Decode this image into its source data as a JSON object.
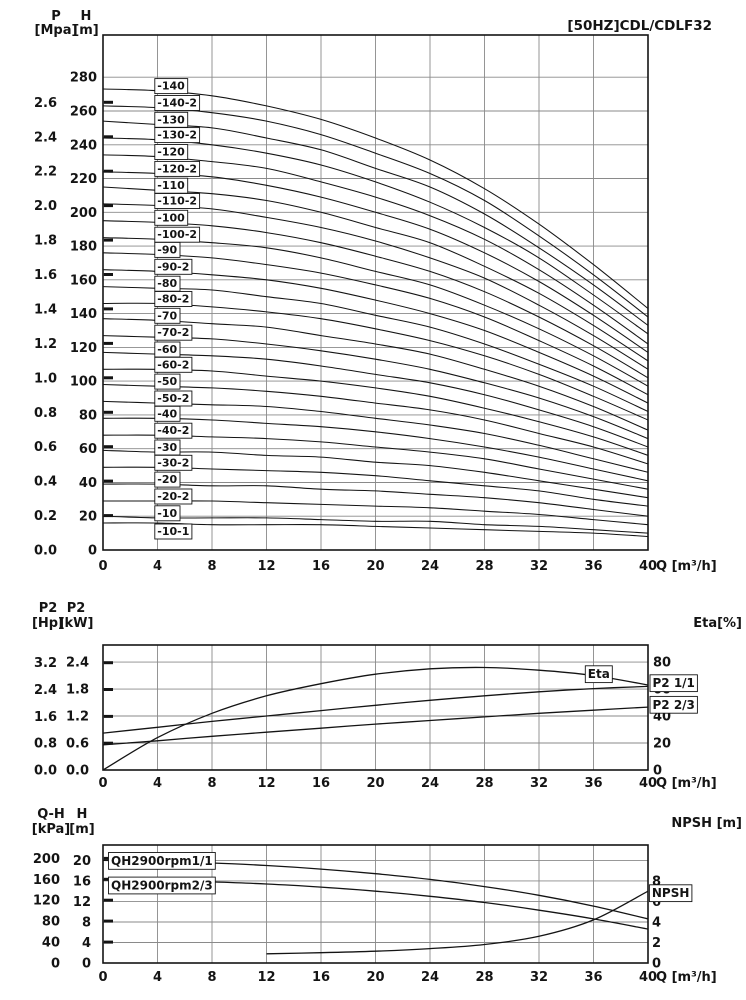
{
  "sheet_title": "[50HZ]CDL/CDLF32",
  "chart_data": [
    {
      "id": "main",
      "type": "line",
      "title": "[50HZ]CDL/CDLF32",
      "x_axis_label": "Q [m³/h]",
      "xlim": [
        0,
        40
      ],
      "x_ticks": [
        "0",
        "4",
        "8",
        "12",
        "16",
        "20",
        "24",
        "28",
        "32",
        "36",
        "40"
      ],
      "x": [
        0,
        4,
        8,
        12,
        16,
        20,
        24,
        28,
        32,
        36,
        40
      ],
      "y_internal": {
        "unit": "m",
        "max": 305,
        "grid_step": 20,
        "grid_max": 280
      },
      "left_axes": [
        {
          "name": "P",
          "unit": "[Mpa]",
          "ticks": [
            "0.0",
            "0.2",
            "0.4",
            "0.6",
            "0.8",
            "1.0",
            "1.2",
            "1.4",
            "1.6",
            "1.8",
            "2.0",
            "2.2",
            "2.4",
            "2.6"
          ],
          "unit_to_internal": 101.97,
          "bold_edge_ticks": true
        },
        {
          "name": "H",
          "unit": "[m]",
          "ticks": [
            "0",
            "20",
            "40",
            "60",
            "80",
            "100",
            "120",
            "140",
            "160",
            "180",
            "200",
            "220",
            "240",
            "260",
            "280"
          ],
          "unit_to_internal": 1
        }
      ],
      "series": [
        {
          "name": "-140",
          "values": [
            273,
            272,
            269,
            263,
            255,
            244,
            231,
            214,
            193,
            169,
            143
          ],
          "label": {
            "x": 3.8
          }
        },
        {
          "name": "-140-2",
          "values": [
            263,
            262,
            259,
            254,
            246,
            235,
            223,
            207,
            186,
            163,
            138
          ],
          "label": {
            "x": 3.8
          }
        },
        {
          "name": "-130",
          "values": [
            254,
            252,
            250,
            244,
            237,
            226,
            215,
            199,
            179,
            157,
            133
          ],
          "label": {
            "x": 3.8
          }
        },
        {
          "name": "-130-2",
          "values": [
            244,
            243,
            240,
            235,
            228,
            218,
            206,
            191,
            173,
            151,
            128
          ],
          "label": {
            "x": 3.8
          }
        },
        {
          "name": "-120",
          "values": [
            234,
            233,
            230,
            226,
            218,
            209,
            198,
            184,
            166,
            145,
            122
          ],
          "label": {
            "x": 3.8
          }
        },
        {
          "name": "-120-2",
          "values": [
            224,
            223,
            221,
            216,
            209,
            200,
            190,
            176,
            159,
            139,
            117
          ],
          "label": {
            "x": 3.8
          }
        },
        {
          "name": "-110",
          "values": [
            215,
            213,
            211,
            207,
            200,
            191,
            182,
            168,
            152,
            133,
            112
          ],
          "label": {
            "x": 3.8
          }
        },
        {
          "name": "-110-2",
          "values": [
            205,
            204,
            202,
            197,
            191,
            183,
            173,
            161,
            145,
            127,
            107
          ],
          "label": {
            "x": 3.8
          }
        },
        {
          "name": "-100",
          "values": [
            195,
            194,
            192,
            188,
            182,
            174,
            165,
            153,
            138,
            121,
            102
          ],
          "label": {
            "x": 3.8
          }
        },
        {
          "name": "-100-2",
          "values": [
            185,
            184,
            182,
            179,
            173,
            165,
            157,
            145,
            131,
            115,
            97
          ],
          "label": {
            "x": 3.8
          }
        },
        {
          "name": "-90",
          "values": [
            176,
            175,
            173,
            169,
            164,
            157,
            149,
            138,
            124,
            109,
            92
          ],
          "label": {
            "x": 3.8
          }
        },
        {
          "name": "-90-2",
          "values": [
            166,
            165,
            163,
            160,
            155,
            148,
            140,
            130,
            117,
            103,
            87
          ],
          "label": {
            "x": 3.8
          }
        },
        {
          "name": "-80",
          "values": [
            156,
            155,
            154,
            150,
            146,
            139,
            132,
            122,
            110,
            97,
            82
          ],
          "label": {
            "x": 3.8
          }
        },
        {
          "name": "-80-2",
          "values": [
            146,
            146,
            144,
            141,
            137,
            131,
            124,
            115,
            104,
            91,
            77
          ],
          "label": {
            "x": 3.8
          }
        },
        {
          "name": "-70",
          "values": [
            137,
            136,
            134,
            132,
            127,
            122,
            116,
            107,
            97,
            85,
            71
          ],
          "label": {
            "x": 3.8
          }
        },
        {
          "name": "-70-2",
          "values": [
            127,
            126,
            125,
            122,
            118,
            113,
            107,
            99,
            90,
            79,
            66
          ],
          "label": {
            "x": 3.8
          }
        },
        {
          "name": "-60",
          "values": [
            117,
            116,
            115,
            113,
            109,
            104,
            99,
            92,
            83,
            73,
            61
          ],
          "label": {
            "x": 3.8
          }
        },
        {
          "name": "-60-2",
          "values": [
            107,
            107,
            106,
            103,
            100,
            96,
            91,
            84,
            76,
            67,
            56
          ],
          "label": {
            "x": 3.8
          }
        },
        {
          "name": "-50",
          "values": [
            98,
            97,
            96,
            94,
            91,
            87,
            83,
            77,
            69,
            61,
            51
          ],
          "label": {
            "x": 3.8
          }
        },
        {
          "name": "-50-2",
          "values": [
            88,
            87,
            86,
            85,
            82,
            78,
            74,
            69,
            62,
            54,
            46
          ],
          "label": {
            "x": 3.8
          }
        },
        {
          "name": "-40",
          "values": [
            78,
            78,
            77,
            75,
            73,
            70,
            66,
            61,
            55,
            48,
            41
          ],
          "label": {
            "x": 3.8
          }
        },
        {
          "name": "-40-2",
          "values": [
            68,
            68,
            67,
            66,
            64,
            61,
            58,
            54,
            48,
            42,
            36
          ],
          "label": {
            "x": 3.8
          }
        },
        {
          "name": "-30",
          "values": [
            59,
            58,
            58,
            56,
            55,
            52,
            50,
            46,
            41,
            36,
            31
          ],
          "label": {
            "x": 3.8
          }
        },
        {
          "name": "-30-2",
          "values": [
            49,
            49,
            48,
            47,
            46,
            44,
            41,
            38,
            35,
            30,
            26
          ],
          "label": {
            "x": 3.8
          }
        },
        {
          "name": "-20",
          "values": [
            39,
            39,
            38,
            38,
            36,
            35,
            33,
            31,
            28,
            24,
            20
          ],
          "label": {
            "x": 3.8
          }
        },
        {
          "name": "-20-2",
          "values": [
            29,
            29,
            29,
            28,
            27,
            26,
            25,
            23,
            21,
            18,
            15
          ],
          "label": {
            "x": 3.8
          }
        },
        {
          "name": "-10",
          "values": [
            20,
            19,
            19,
            19,
            18,
            17,
            17,
            15,
            14,
            12,
            10
          ],
          "label": {
            "x": 3.8
          }
        },
        {
          "name": "-10-1",
          "values": [
            16,
            16,
            15,
            15,
            15,
            14,
            13,
            12,
            11,
            10,
            8
          ],
          "label": {
            "x": 3.8,
            "pos": "below"
          }
        }
      ]
    },
    {
      "id": "power",
      "type": "line",
      "x_axis_label": "Q [m³/h]",
      "xlim": [
        0,
        40
      ],
      "x_ticks": [
        "0",
        "4",
        "8",
        "12",
        "16",
        "20",
        "24",
        "28",
        "32",
        "36",
        "40"
      ],
      "x": [
        0,
        4,
        8,
        12,
        16,
        20,
        24,
        28,
        32,
        36,
        40
      ],
      "y_internal": {
        "unit": "kW",
        "max": 2.78,
        "grid_step": 0.6,
        "grid_max": 2.4
      },
      "left_axes": [
        {
          "name": "P2",
          "unit": "[Hp]",
          "ticks": [
            "0.0",
            "0.8",
            "1.6",
            "2.4",
            "3.2"
          ],
          "unit_to_internal": 0.7457,
          "bold_edge_ticks": true
        },
        {
          "name": "P2",
          "unit": "[kW]",
          "ticks": [
            "0.0",
            "0.6",
            "1.2",
            "1.8",
            "2.4"
          ],
          "unit_to_internal": 1
        }
      ],
      "right_axis": {
        "title": "Eta[%]",
        "ticks": [
          "0",
          "20",
          "40",
          "60",
          "80"
        ],
        "unit_to_internal": 0.03
      },
      "series": [
        {
          "name": "Eta",
          "axis": "right",
          "values": [
            0,
            24,
            42,
            55,
            64,
            71,
            75,
            76,
            74,
            70,
            63
          ],
          "label": {
            "x": 35.4,
            "y": 71,
            "align": "left"
          }
        },
        {
          "name": "P2 1/1",
          "values": [
            0.82,
            0.95,
            1.08,
            1.2,
            1.32,
            1.44,
            1.55,
            1.65,
            1.74,
            1.81,
            1.86
          ],
          "label": {
            "x": 40.15,
            "y": 1.93,
            "align": "left"
          }
        },
        {
          "name": "P2 2/3",
          "values": [
            0.56,
            0.65,
            0.75,
            0.84,
            0.93,
            1.02,
            1.1,
            1.18,
            1.26,
            1.33,
            1.4
          ],
          "label": {
            "x": 40.15,
            "y": 1.45,
            "align": "left"
          }
        }
      ]
    },
    {
      "id": "flow",
      "type": "line",
      "x_axis_label": "Q [m³/h]",
      "xlim": [
        0,
        40
      ],
      "x_ticks": [
        "0",
        "4",
        "8",
        "12",
        "16",
        "20",
        "24",
        "28",
        "32",
        "36",
        "40"
      ],
      "x": [
        0,
        4,
        8,
        12,
        16,
        20,
        24,
        28,
        32,
        36,
        40
      ],
      "y_internal": {
        "unit": "m",
        "max": 23,
        "grid_step": 4,
        "grid_max": 20
      },
      "left_axes": [
        {
          "name": "Q-H",
          "unit": "[kPa]",
          "ticks": [
            "0",
            "40",
            "80",
            "120",
            "160",
            "200"
          ],
          "unit_to_internal": 0.10197,
          "bold_edge_ticks": true
        },
        {
          "name": "H",
          "unit": "[m]",
          "ticks": [
            "0",
            "4",
            "8",
            "12",
            "16",
            "20"
          ],
          "unit_to_internal": 1
        }
      ],
      "right_axis": {
        "title": "NPSH [m]",
        "ticks": [
          "0",
          "2",
          "4",
          "6",
          "8"
        ],
        "unit_to_internal": 2
      },
      "series": [
        {
          "name": "QH2900rpm1/1",
          "values": [
            20,
            19.8,
            19.5,
            19,
            18.3,
            17.4,
            16.3,
            14.9,
            13.2,
            11.1,
            8.6
          ],
          "label": {
            "x": 0.4,
            "y": 19.9,
            "align": "left"
          }
        },
        {
          "name": "QH2900rpm2/3",
          "values": [
            16.2,
            16,
            15.8,
            15.4,
            14.8,
            14,
            13,
            11.8,
            10.3,
            8.6,
            6.6
          ],
          "label": {
            "x": 0.4,
            "y": 15.1,
            "align": "left"
          }
        },
        {
          "name": "NPSH",
          "axis": "right",
          "x": [
            12,
            16,
            20,
            24,
            28,
            32,
            36,
            40
          ],
          "values": [
            0.9,
            1,
            1.15,
            1.4,
            1.8,
            2.6,
            4.2,
            7
          ],
          "label": {
            "x": 40.1,
            "y": 6.8,
            "align": "left"
          }
        }
      ]
    }
  ]
}
